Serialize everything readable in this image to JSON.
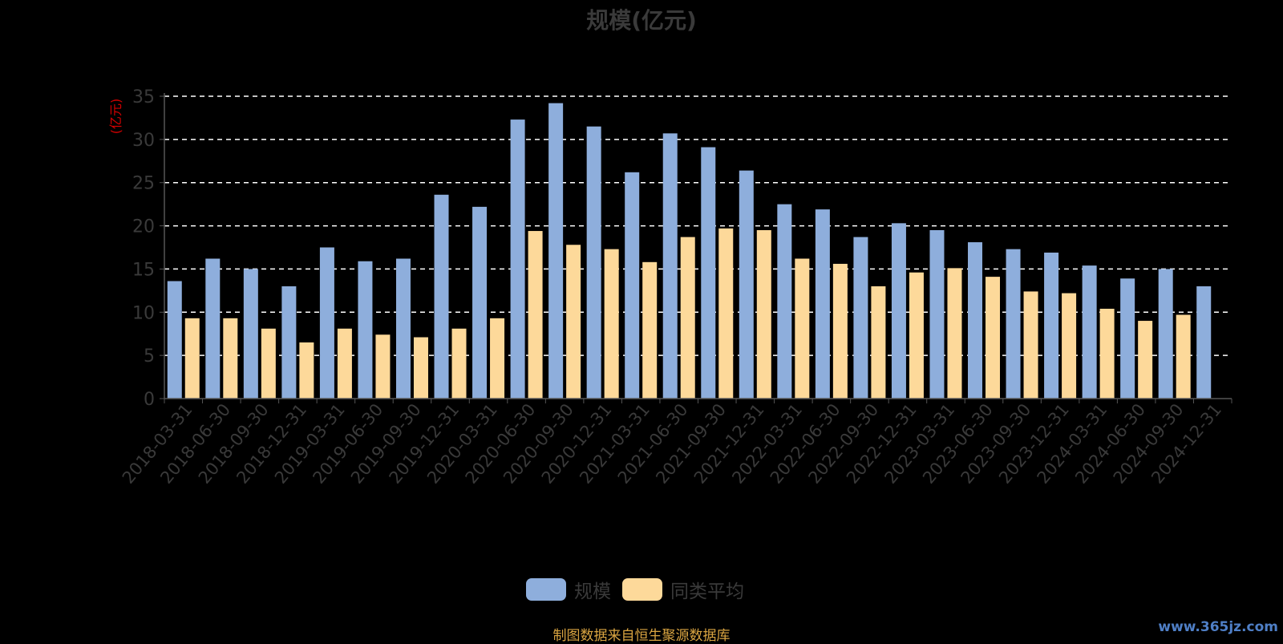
{
  "colors": {
    "primary": "#8eaedc",
    "secondary": "#fdd99a",
    "grid": "#ffffff",
    "axis": "#555555",
    "text": "#3a3a3a",
    "unit": "#d40000",
    "source": "#d9a441"
  },
  "chart_data": {
    "type": "bar",
    "title": "规模(亿元)",
    "ylabel": "(亿元)",
    "ylim": [
      0,
      35
    ],
    "yticks": [
      0,
      5,
      10,
      15,
      20,
      25,
      30,
      35
    ],
    "grid": true,
    "legend_position": "bottom",
    "categories": [
      "2018-03-31",
      "2018-06-30",
      "2018-09-30",
      "2018-12-31",
      "2019-03-31",
      "2019-06-30",
      "2019-09-30",
      "2019-12-31",
      "2020-03-31",
      "2020-06-30",
      "2020-09-30",
      "2020-12-31",
      "2021-03-31",
      "2021-06-30",
      "2021-09-30",
      "2021-12-31",
      "2022-03-31",
      "2022-06-30",
      "2022-09-30",
      "2022-12-31",
      "2023-03-31",
      "2023-06-30",
      "2023-09-30",
      "2023-12-31",
      "2024-03-31",
      "2024-06-30",
      "2024-09-30",
      "2024-12-31"
    ],
    "series": [
      {
        "name": "规模",
        "color": "#8eaedc",
        "values": [
          13.6,
          16.2,
          15.0,
          13.0,
          17.5,
          15.9,
          16.2,
          23.6,
          22.2,
          32.3,
          34.2,
          31.5,
          26.2,
          30.7,
          29.1,
          26.4,
          22.5,
          21.9,
          18.7,
          20.3,
          19.5,
          18.1,
          17.3,
          16.9,
          15.4,
          13.9,
          15.0,
          13.0
        ]
      },
      {
        "name": "同类平均",
        "color": "#fdd99a",
        "values": [
          9.3,
          9.3,
          8.1,
          6.5,
          8.1,
          7.4,
          7.1,
          8.1,
          9.3,
          19.4,
          17.8,
          17.3,
          15.8,
          18.7,
          19.7,
          19.5,
          16.2,
          15.6,
          13.0,
          14.6,
          15.1,
          14.1,
          12.4,
          12.2,
          10.4,
          9.0,
          9.7,
          null
        ]
      }
    ]
  },
  "footer": {
    "source": "制图数据来自恒生聚源数据库",
    "watermark": "www.365jz.com"
  }
}
